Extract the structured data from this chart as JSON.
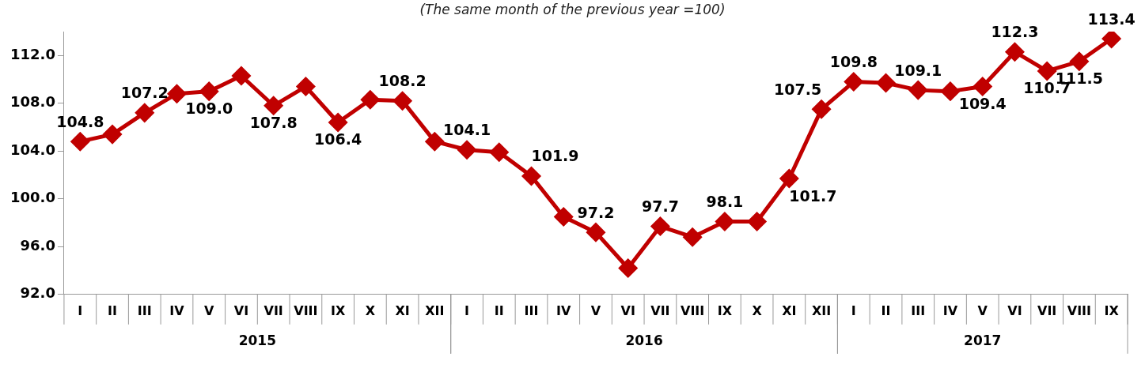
{
  "chart_data": {
    "type": "line",
    "subtitle": "(The same month of the previous year =100)",
    "categories": [
      "I",
      "II",
      "III",
      "IV",
      "V",
      "VI",
      "VII",
      "VIII",
      "IX",
      "X",
      "XI",
      "XII",
      "I",
      "II",
      "III",
      "IV",
      "V",
      "VI",
      "VII",
      "VIII",
      "IX",
      "X",
      "XI",
      "XII",
      "I",
      "II",
      "III",
      "IV",
      "V",
      "VI",
      "VII",
      "VIII",
      "IX"
    ],
    "series": [
      {
        "color": "#c00000",
        "values": [
          104.8,
          105.4,
          107.2,
          108.8,
          109.0,
          110.3,
          107.8,
          109.4,
          106.4,
          108.3,
          108.2,
          104.8,
          104.1,
          103.9,
          101.9,
          98.5,
          97.2,
          94.2,
          97.7,
          96.8,
          98.1,
          98.1,
          101.7,
          107.5,
          109.8,
          109.7,
          109.1,
          109.0,
          109.4,
          112.3,
          110.7,
          111.5,
          113.4
        ],
        "value_labels": [
          "104.8",
          null,
          "107.2",
          null,
          "109.0",
          null,
          "107.8",
          null,
          "106.4",
          null,
          "108.2",
          null,
          "104.1",
          null,
          "101.9",
          null,
          "97.2",
          null,
          "97.7",
          null,
          "98.1",
          null,
          "101.7",
          "107.5",
          "109.8",
          null,
          "109.1",
          null,
          "109.4",
          "112.3",
          "110.7",
          "111.5",
          "113.4"
        ]
      }
    ],
    "annotations": [
      "2015",
      "2016",
      "2017"
    ],
    "ylim": [
      92,
      114
    ],
    "yticks": [
      {
        "value": 92,
        "label": "92.0"
      },
      {
        "value": 96,
        "label": "96.0"
      },
      {
        "value": 100,
        "label": "100.0"
      },
      {
        "value": 104,
        "label": "104.0"
      },
      {
        "value": 108,
        "label": "108.0"
      },
      {
        "value": 112,
        "label": "112.0"
      }
    ],
    "grid": false,
    "legend": false,
    "marker": "diamond",
    "line_style": "solid"
  }
}
